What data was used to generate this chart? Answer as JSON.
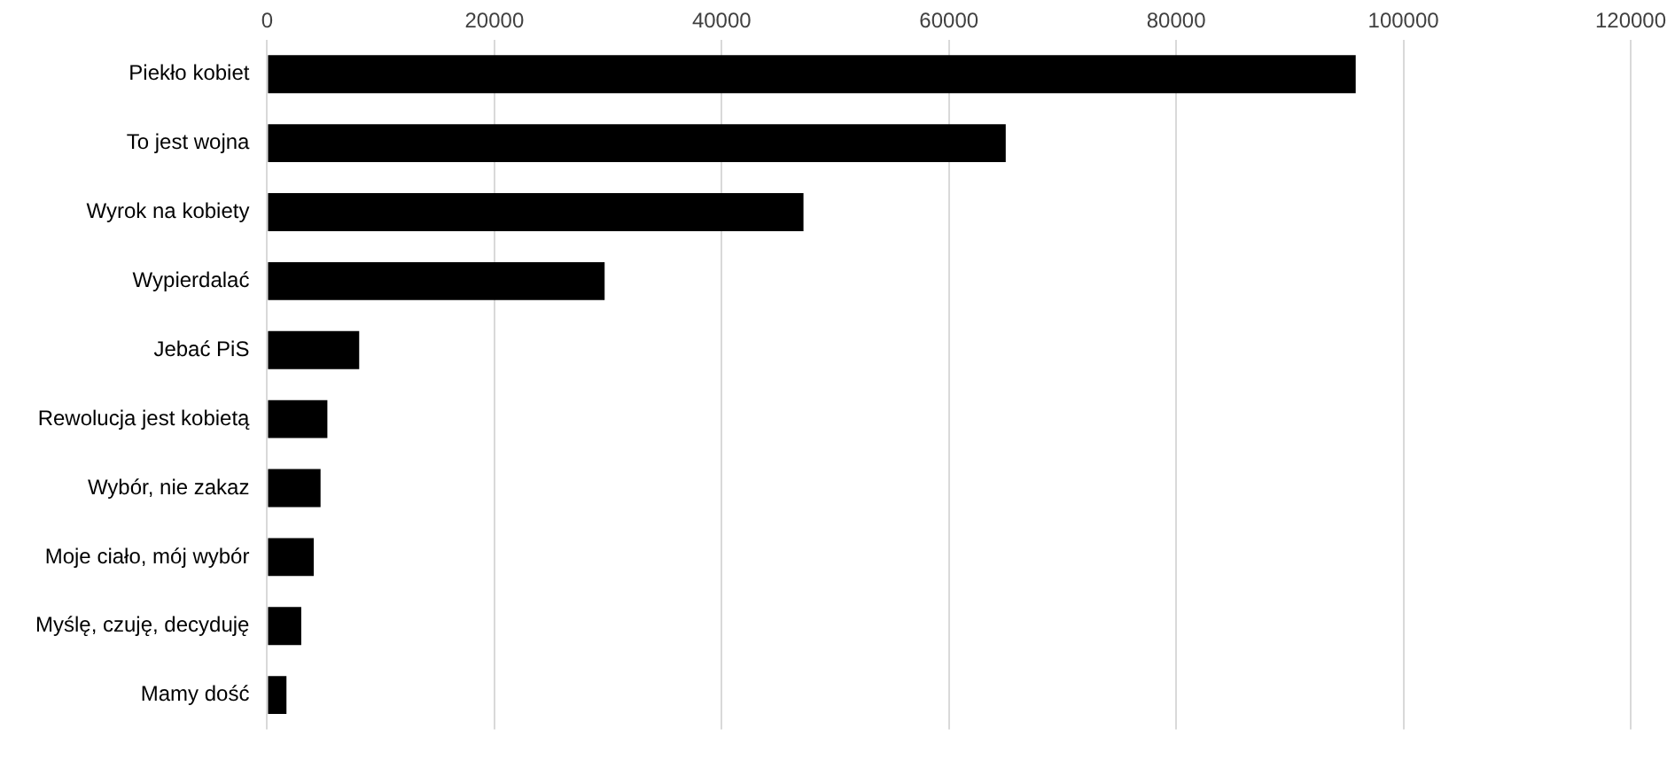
{
  "chart_data": {
    "type": "bar",
    "orientation": "horizontal",
    "categories": [
      "Piekło kobiet",
      "To jest wojna",
      "Wyrok na kobiety",
      "Wypierdalać",
      "Jebać PiS",
      "Rewolucja jest kobietą",
      "Wybór, nie zakaz",
      "Moje ciało, mój wybór",
      "Myślę, czuję, decyduję",
      "Mamy dość"
    ],
    "values": [
      95800,
      65000,
      47200,
      29700,
      8100,
      5300,
      4700,
      4100,
      3000,
      1700
    ],
    "color": "#000000",
    "xlim": [
      0,
      120000
    ],
    "xticks": [
      0,
      20000,
      40000,
      60000,
      80000,
      100000,
      120000
    ],
    "grid": "x",
    "legend": false
  }
}
